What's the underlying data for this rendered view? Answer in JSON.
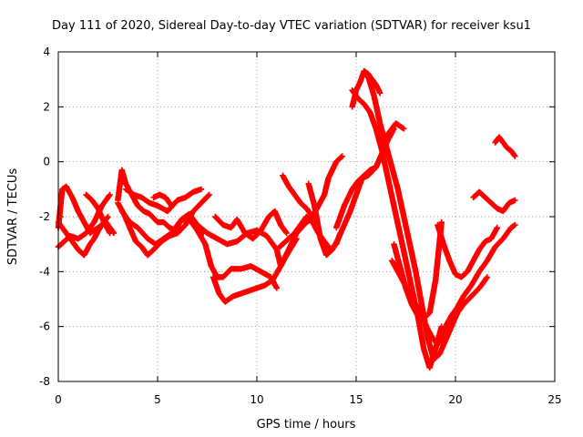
{
  "chart_data": {
    "type": "scatter",
    "title": "Day 111 of 2020, Sidereal Day-to-day VTEC variation (SDTVAR) for receiver ksu1",
    "xlabel": "GPS time / hours",
    "ylabel": "SDTVAR / TECUs",
    "xlim": [
      0,
      25
    ],
    "ylim": [
      -8,
      4
    ],
    "xticks": [
      "0",
      "5",
      "10",
      "15",
      "20",
      "25"
    ],
    "yticks": [
      "-8",
      "-6",
      "-4",
      "-2",
      "0",
      "2",
      "4"
    ],
    "grid": true,
    "marker": "plus",
    "color": "#ff0000",
    "series": [
      {
        "x": [
          0.0,
          0.2,
          0.4,
          0.7,
          1.0,
          1.3,
          1.6,
          2.0,
          2.4,
          2.8
        ],
        "y": [
          -2.4,
          -1.0,
          -0.9,
          -1.3,
          -1.8,
          -2.2,
          -2.6,
          -2.4,
          -2.2,
          -2.6
        ]
      },
      {
        "x": [
          0.0,
          0.3,
          0.6,
          1.0,
          1.4,
          1.8,
          2.2,
          2.6
        ],
        "y": [
          -3.1,
          -2.9,
          -2.7,
          -2.8,
          -2.6,
          -2.2,
          -1.6,
          -1.2
        ]
      },
      {
        "x": [
          0.0,
          0.5,
          1.0,
          1.3,
          1.6,
          1.8,
          2.1,
          2.5
        ],
        "y": [
          -2.2,
          -2.7,
          -3.2,
          -3.4,
          -3.0,
          -2.8,
          -2.4,
          -2.0
        ]
      },
      {
        "x": [
          1.4,
          1.7,
          2.0,
          2.3,
          2.6
        ],
        "y": [
          -1.2,
          -1.4,
          -1.7,
          -2.2,
          -2.6
        ]
      },
      {
        "x": [
          3.0,
          3.2,
          3.4,
          3.7,
          4.0,
          4.3,
          4.6,
          5.0,
          5.3,
          5.6,
          5.9,
          6.2,
          6.6,
          7.0,
          7.3
        ],
        "y": [
          -1.4,
          -0.3,
          -0.8,
          -1.2,
          -1.6,
          -1.8,
          -1.9,
          -2.2,
          -2.2,
          -2.4,
          -2.5,
          -2.1,
          -1.9,
          -2.3,
          -2.6
        ]
      },
      {
        "x": [
          3.0,
          3.3,
          3.6,
          3.9,
          4.2,
          4.5,
          4.8,
          5.2,
          5.6,
          6.0,
          6.4,
          6.8,
          7.2,
          7.6
        ],
        "y": [
          -1.5,
          -1.9,
          -2.4,
          -2.9,
          -3.1,
          -3.4,
          -3.2,
          -2.9,
          -2.7,
          -2.6,
          -2.3,
          -1.8,
          -1.5,
          -1.2
        ]
      },
      {
        "x": [
          3.2,
          3.6,
          4.0,
          4.5,
          4.9,
          5.3,
          5.7,
          6.1,
          6.5,
          7.0,
          7.5,
          8.0,
          8.5,
          9.0,
          9.5,
          10.0,
          10.5,
          11.0,
          11.2,
          11.5,
          12.0
        ],
        "y": [
          -1.8,
          -2.2,
          -2.4,
          -2.8,
          -3.0,
          -2.8,
          -2.6,
          -2.2,
          -2.0,
          -2.3,
          -2.6,
          -2.8,
          -3.0,
          -2.9,
          -2.6,
          -2.5,
          -2.7,
          -3.2,
          -3.8,
          -3.4,
          -2.8
        ]
      },
      {
        "x": [
          3.4,
          3.8,
          4.2,
          4.6,
          5.0,
          5.5,
          6.0,
          6.4,
          6.8,
          7.2
        ],
        "y": [
          -1.0,
          -1.2,
          -1.3,
          -1.5,
          -1.6,
          -1.8,
          -1.4,
          -1.3,
          -1.1,
          -1.0
        ]
      },
      {
        "x": [
          4.8,
          5.1,
          5.4,
          5.7
        ],
        "y": [
          -1.3,
          -1.2,
          -1.3,
          -1.6
        ]
      },
      {
        "x": [
          6.5,
          7.0,
          7.4,
          7.7,
          8.0,
          8.3,
          8.7,
          9.2,
          9.7,
          10.2,
          10.7,
          11.0
        ],
        "y": [
          -2.0,
          -2.5,
          -3.0,
          -3.8,
          -4.2,
          -4.2,
          -3.9,
          -3.9,
          -3.8,
          -4.0,
          -4.2,
          -4.6
        ]
      },
      {
        "x": [
          7.8,
          8.1,
          8.4,
          8.8,
          9.2,
          9.6,
          10.0,
          10.4,
          10.8,
          11.2,
          11.6,
          12.0,
          12.5,
          13.0
        ],
        "y": [
          -4.2,
          -4.8,
          -5.1,
          -4.9,
          -4.8,
          -4.7,
          -4.6,
          -4.5,
          -4.3,
          -3.8,
          -3.2,
          -2.6,
          -2.2,
          -2.0
        ]
      },
      {
        "x": [
          7.9,
          8.3,
          8.7,
          9.0,
          9.4,
          9.8,
          10.2,
          10.6,
          10.9,
          11.2,
          11.5
        ],
        "y": [
          -2.0,
          -2.3,
          -2.4,
          -2.1,
          -2.6,
          -2.8,
          -2.5,
          -2.0,
          -1.8,
          -2.3,
          -2.6
        ]
      },
      {
        "x": [
          11.3,
          11.6,
          11.9,
          12.2,
          12.5,
          12.8,
          13.1,
          13.4,
          13.6,
          13.8,
          14.0,
          14.3
        ],
        "y": [
          -0.5,
          -0.9,
          -1.2,
          -1.5,
          -1.7,
          -2.0,
          -1.6,
          -1.2,
          -0.6,
          -0.3,
          0.0,
          0.2
        ]
      },
      {
        "x": [
          11.0,
          11.3,
          11.6,
          11.9,
          12.2,
          12.5,
          12.8,
          13.1,
          13.4,
          13.7,
          14.0,
          14.2
        ],
        "y": [
          -3.2,
          -3.0,
          -2.8,
          -2.6,
          -2.3,
          -2.0,
          -2.2,
          -2.6,
          -2.9,
          -3.2,
          -3.0,
          -2.6
        ]
      },
      {
        "x": [
          12.6,
          12.9,
          13.2,
          13.5,
          13.8,
          14.1,
          14.4,
          14.7,
          15.0,
          15.3,
          15.6,
          16.0,
          16.3,
          16.6,
          16.9
        ],
        "y": [
          -0.8,
          -1.6,
          -2.8,
          -3.4,
          -3.2,
          -2.8,
          -2.3,
          -1.8,
          -1.2,
          -0.6,
          -0.5,
          -0.2,
          0.3,
          0.8,
          1.2
        ]
      },
      {
        "x": [
          14.0,
          14.4,
          14.8,
          15.1,
          15.4,
          15.7,
          16.0,
          16.3,
          16.6,
          17.0,
          17.4
        ],
        "y": [
          -2.4,
          -1.6,
          -1.0,
          -0.7,
          -0.5,
          -0.3,
          -0.2,
          0.3,
          1.0,
          1.4,
          1.2
        ]
      },
      {
        "x": [
          14.8,
          15.0,
          15.2,
          15.4,
          15.6,
          15.9,
          16.2,
          16.5,
          16.8,
          17.1,
          17.4,
          17.7,
          18.0,
          18.3,
          18.6,
          18.9,
          19.2,
          19.5,
          19.8,
          20.1,
          20.4,
          20.8,
          21.2,
          21.6
        ],
        "y": [
          2.0,
          2.6,
          2.9,
          3.3,
          3.1,
          2.4,
          1.4,
          0.6,
          -0.2,
          -1.0,
          -2.0,
          -3.0,
          -4.0,
          -5.2,
          -6.4,
          -7.2,
          -7.0,
          -6.5,
          -6.0,
          -5.5,
          -5.2,
          -4.9,
          -4.6,
          -4.2
        ]
      },
      {
        "x": [
          14.8,
          15.1,
          15.4,
          15.7,
          16.0,
          16.3,
          16.6,
          16.9,
          17.2,
          17.5,
          17.8,
          18.1,
          18.4,
          18.7,
          19.0,
          19.3
        ],
        "y": [
          2.6,
          2.3,
          2.1,
          1.8,
          1.2,
          0.4,
          -0.6,
          -1.6,
          -2.6,
          -3.6,
          -4.6,
          -5.6,
          -6.8,
          -7.5,
          -6.8,
          -6.0
        ]
      },
      {
        "x": [
          15.4,
          15.6,
          15.8,
          16.0,
          16.2
        ],
        "y": [
          3.3,
          3.2,
          3.0,
          2.8,
          2.5
        ]
      },
      {
        "x": [
          16.8,
          17.1,
          17.4,
          17.7,
          18.0,
          18.3,
          18.6,
          18.9,
          19.2,
          19.5,
          19.8,
          20.1,
          20.4,
          20.8,
          21.2,
          21.6,
          22.0,
          22.4,
          22.8,
          23.0
        ],
        "y": [
          -3.6,
          -4.0,
          -4.4,
          -4.8,
          -5.2,
          -5.6,
          -6.1,
          -6.5,
          -6.6,
          -6.0,
          -5.6,
          -5.3,
          -4.9,
          -4.5,
          -4.0,
          -3.6,
          -3.1,
          -2.8,
          -2.4,
          -2.3
        ]
      },
      {
        "x": [
          16.9,
          17.2,
          17.5,
          17.8,
          18.1,
          18.4,
          18.7,
          19.0,
          19.3
        ],
        "y": [
          -3.0,
          -3.8,
          -4.6,
          -5.2,
          -5.6,
          -5.7,
          -5.5,
          -4.3,
          -2.2
        ]
      },
      {
        "x": [
          19.1,
          19.4,
          19.7,
          20.0,
          20.3,
          20.6,
          20.9,
          21.2,
          21.5,
          21.8,
          22.1
        ],
        "y": [
          -2.3,
          -3.0,
          -3.6,
          -4.1,
          -4.2,
          -4.0,
          -3.6,
          -3.2,
          -2.9,
          -2.8,
          -2.4
        ]
      },
      {
        "x": [
          20.9,
          21.2,
          21.5,
          21.8,
          22.1,
          22.4,
          22.7,
          23.0
        ],
        "y": [
          -1.3,
          -1.1,
          -1.3,
          -1.5,
          -1.7,
          -1.8,
          -1.5,
          -1.4
        ]
      },
      {
        "x": [
          22.0,
          22.2,
          22.4,
          22.6,
          22.8,
          23.0
        ],
        "y": [
          0.7,
          0.9,
          0.7,
          0.5,
          0.4,
          0.2
        ]
      }
    ]
  }
}
